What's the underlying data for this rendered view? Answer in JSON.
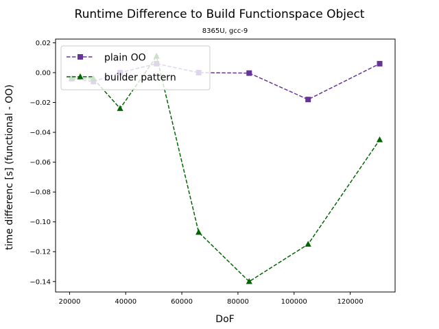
{
  "chart_data": {
    "type": "line",
    "title": "Runtime Difference to Build Functionspace Object",
    "subtitle": "8365U, gcc-9",
    "xlabel": "DoF",
    "ylabel": "time differenc [s] (functional - OO)",
    "xlim": [
      15000,
      136000
    ],
    "ylim": [
      -0.147,
      0.0225
    ],
    "xticks": [
      20000,
      40000,
      60000,
      80000,
      100000,
      120000
    ],
    "xtick_labels": [
      "20000",
      "40000",
      "60000",
      "80000",
      "100000",
      "120000"
    ],
    "yticks": [
      0.02,
      0.0,
      -0.02,
      -0.04,
      -0.06,
      -0.08,
      -0.1,
      -0.12,
      -0.14
    ],
    "ytick_labels": [
      "0.02",
      "0.00",
      "−0.02",
      "−0.04",
      "−0.06",
      "−0.08",
      "−0.10",
      "−0.12",
      "−0.14"
    ],
    "grid": false,
    "legend_position": "top-left",
    "series": [
      {
        "name": "plain OO",
        "color": "#663399",
        "marker": "square",
        "linestyle": "dashed",
        "x": [
          20800,
          28500,
          38000,
          51000,
          66000,
          84000,
          105000,
          130500
        ],
        "y": [
          -0.004,
          -0.006,
          0.0,
          0.006,
          0.0,
          -0.0003,
          -0.018,
          0.006
        ]
      },
      {
        "name": "builder pattern",
        "color": "#006400",
        "marker": "triangle",
        "linestyle": "dashed",
        "x": [
          20800,
          28500,
          38000,
          51000,
          66000,
          84000,
          105000,
          130500
        ],
        "y": [
          -0.004,
          -0.004,
          -0.024,
          0.011,
          -0.107,
          -0.14,
          -0.115,
          -0.045
        ]
      }
    ]
  }
}
